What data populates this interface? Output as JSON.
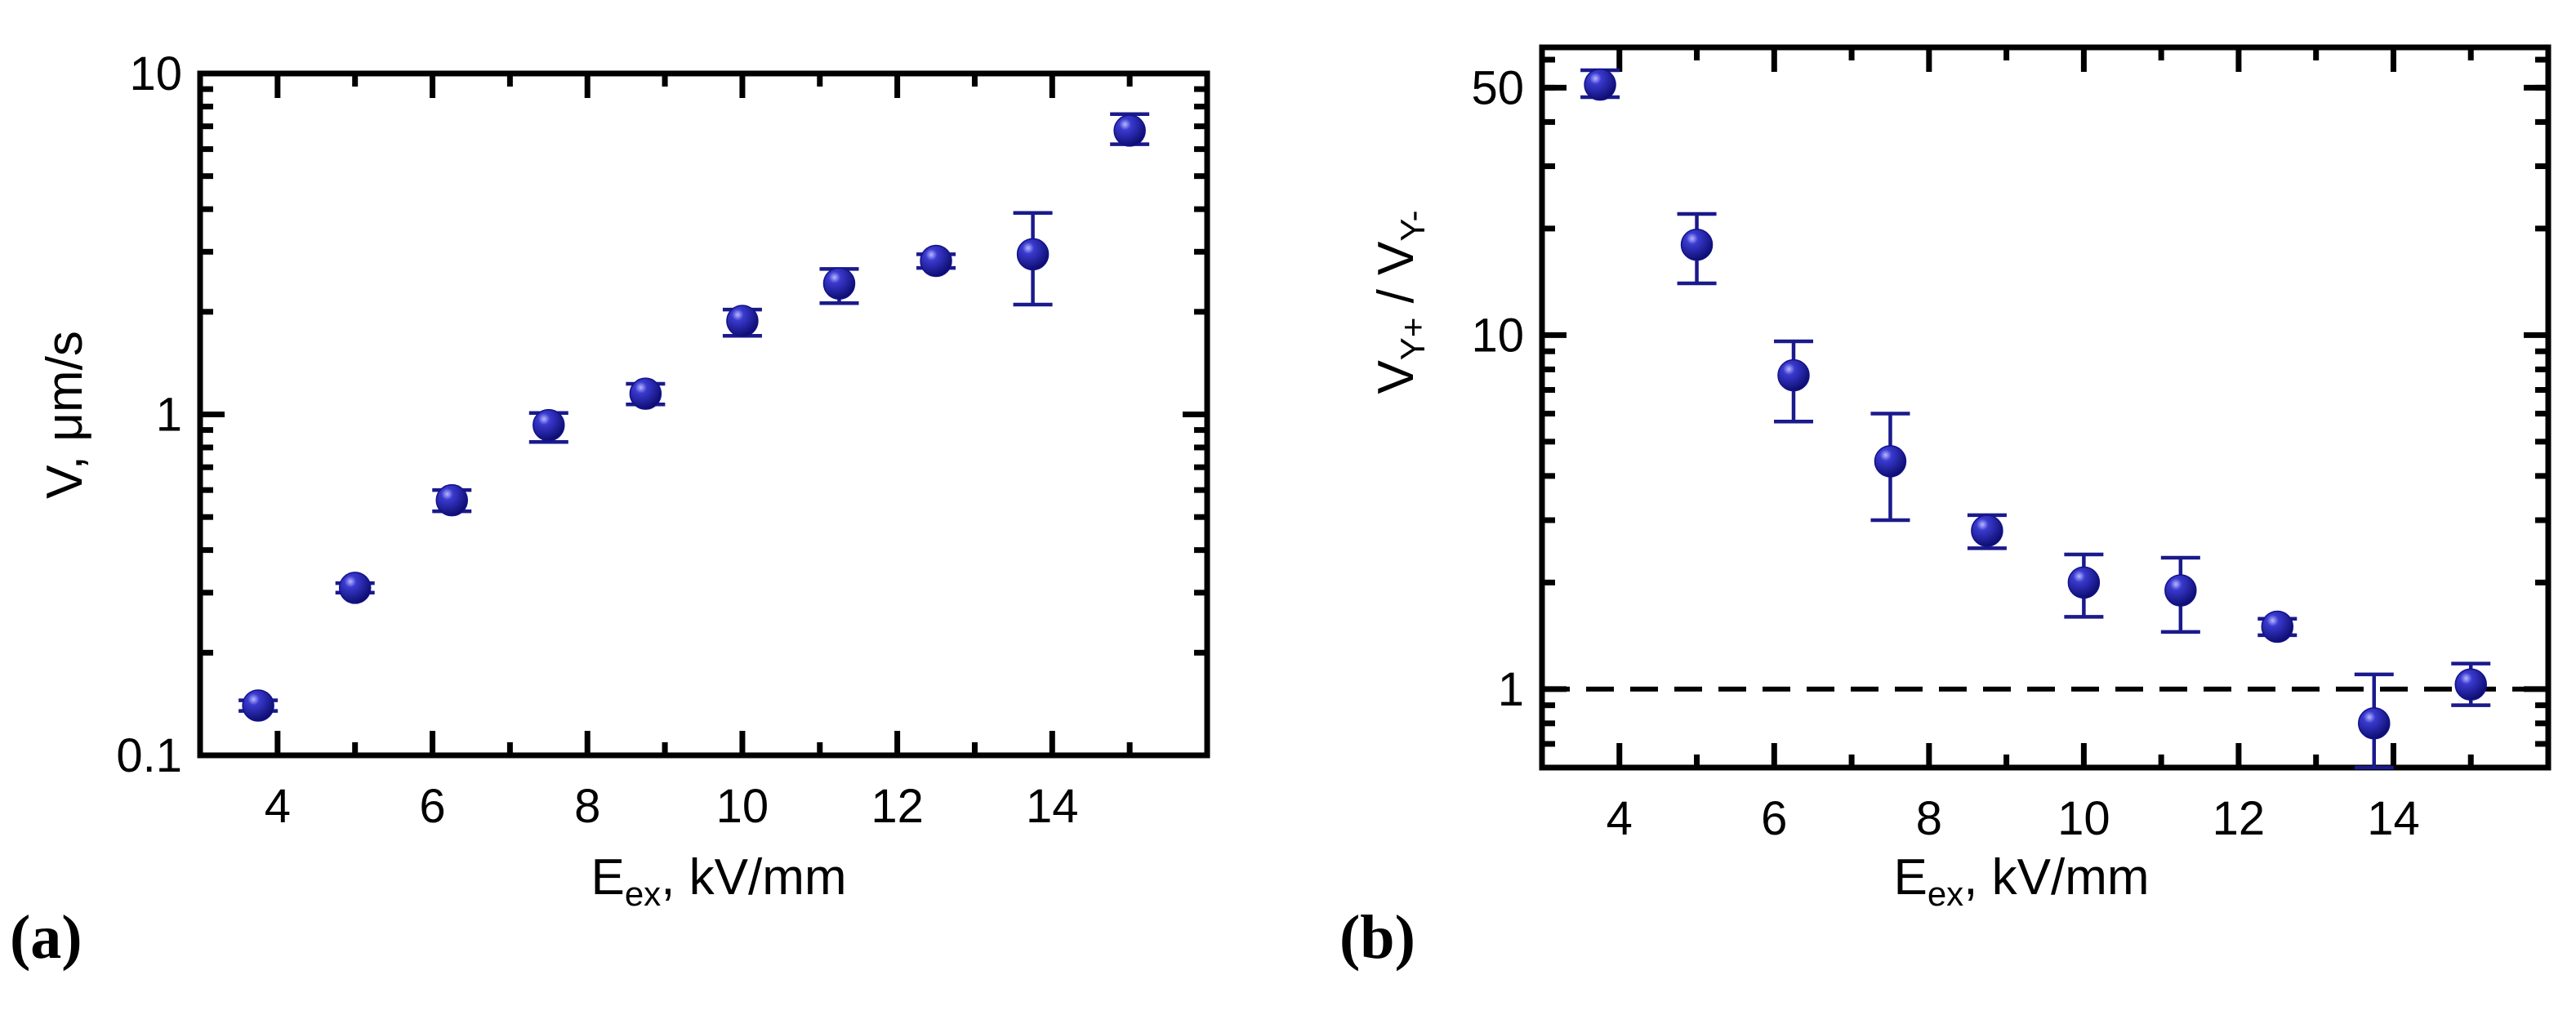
{
  "chart_data": [
    {
      "panel_label": "(a)",
      "type": "scatter",
      "xlabel": {
        "main": "E",
        "sub": "ex",
        "rest": ", kV/mm"
      },
      "ylabel": "V, μm/s",
      "xlim": [
        3,
        16
      ],
      "ylim": [
        0.1,
        10
      ],
      "yscale": "log",
      "xticks": [
        "4",
        "6",
        "8",
        "10",
        "12",
        "14"
      ],
      "yticks": [
        "0.1",
        "1",
        "10"
      ],
      "x": [
        3.75,
        5.0,
        6.25,
        7.5,
        8.75,
        10.0,
        11.25,
        12.5,
        13.75,
        15.0
      ],
      "y": [
        0.14,
        0.31,
        0.56,
        0.93,
        1.15,
        1.88,
        2.42,
        2.82,
        2.95,
        6.8
      ],
      "yerr_low": [
        0.005,
        0.01,
        0.04,
        0.1,
        0.08,
        0.18,
        0.3,
        0.13,
        0.85,
        0.6
      ],
      "yerr_high": [
        0.005,
        0.01,
        0.04,
        0.08,
        0.08,
        0.15,
        0.25,
        0.13,
        0.95,
        0.8
      ],
      "marker_color": "#12128a",
      "errorbar_color": "#1a1a8c"
    },
    {
      "panel_label": "(b)",
      "type": "scatter",
      "xlabel": {
        "main": "E",
        "sub": "ex",
        "rest": ", kV/mm"
      },
      "ylabel": {
        "a": "V",
        "a_sub": "Y+",
        "sep": " / ",
        "b": "V",
        "b_sub": "Y-"
      },
      "xlim": [
        3,
        16
      ],
      "ylim": [
        0.6,
        65
      ],
      "yscale": "log",
      "xticks": [
        "4",
        "6",
        "8",
        "10",
        "12",
        "14"
      ],
      "yticks": [
        "1",
        "10",
        "50"
      ],
      "x": [
        3.75,
        5.0,
        6.25,
        7.5,
        8.75,
        10.0,
        11.25,
        12.5,
        13.75,
        15.0
      ],
      "y": [
        51,
        18,
        7.7,
        4.4,
        2.8,
        2.0,
        1.9,
        1.5,
        0.8,
        1.03
      ],
      "yerr_low": [
        4,
        4,
        2.0,
        1.4,
        0.3,
        0.4,
        0.45,
        0.08,
        0.2,
        0.13
      ],
      "yerr_high": [
        5,
        4,
        1.9,
        1.6,
        0.3,
        0.4,
        0.45,
        0.08,
        0.3,
        0.15
      ],
      "reference_line": {
        "y": 1,
        "style": "dashed"
      },
      "marker_color": "#12128a",
      "errorbar_color": "#1a1a8c"
    }
  ]
}
